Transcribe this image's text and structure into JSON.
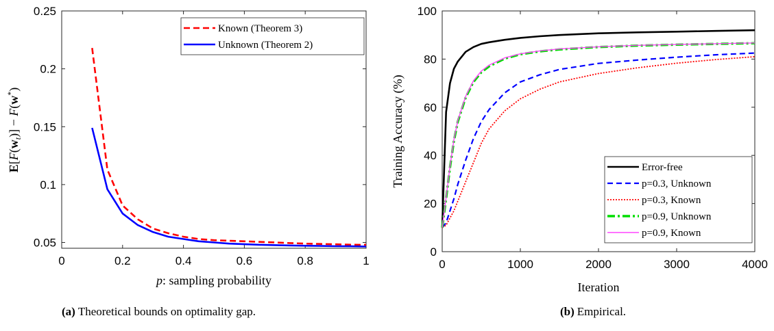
{
  "colors": {
    "known": "#ff0000",
    "unknown": "#0000ff",
    "error_free": "#000000",
    "p09_unknown": "#00dd00",
    "p09_known": "#ff44ff"
  },
  "captions": {
    "a_label": "(a)",
    "a_text": "Theoretical bounds on optimality gap.",
    "b_label": "(b)",
    "b_text": "Empirical."
  },
  "chart_data": [
    {
      "type": "line",
      "title": "",
      "xlabel": "p: sampling probability",
      "ylabel": "E[F(w_t)] − F(w*)",
      "xlim": [
        0,
        1
      ],
      "ylim": [
        0.045,
        0.25
      ],
      "xticks": [
        0,
        0.2,
        0.4,
        0.6,
        0.8,
        1
      ],
      "xtick_labels": [
        "0",
        "0.2",
        "0.4",
        "0.6",
        "0.8",
        "1"
      ],
      "yticks": [
        0.05,
        0.1,
        0.15,
        0.2,
        0.25
      ],
      "ytick_labels": [
        "0.05",
        "0.1",
        "0.15",
        "0.2",
        "0.25"
      ],
      "grid": false,
      "legend_position": "top-right",
      "x": [
        0.1,
        0.15,
        0.2,
        0.25,
        0.3,
        0.35,
        0.4,
        0.45,
        0.5,
        0.55,
        0.6,
        0.65,
        0.7,
        0.75,
        0.8,
        0.85,
        0.9,
        0.95,
        1.0
      ],
      "series": [
        {
          "name": "Known (Theorem 3)",
          "style": "dashed",
          "values": [
            0.218,
            0.113,
            0.082,
            0.07,
            0.062,
            0.058,
            0.055,
            0.053,
            0.052,
            0.0515,
            0.051,
            0.0505,
            0.05,
            0.0495,
            0.049,
            0.0487,
            0.0484,
            0.0481,
            0.048
          ]
        },
        {
          "name": "Unknown (Theorem 2)",
          "style": "solid",
          "values": [
            0.149,
            0.096,
            0.075,
            0.065,
            0.059,
            0.055,
            0.053,
            0.051,
            0.05,
            0.049,
            0.0485,
            0.048,
            0.0477,
            0.0474,
            0.0472,
            0.047,
            0.0468,
            0.0467,
            0.0465
          ]
        }
      ]
    },
    {
      "type": "line",
      "title": "",
      "xlabel": "Iteration",
      "ylabel": "Training Accuracy (%)",
      "xlim": [
        0,
        4000
      ],
      "ylim": [
        0,
        100
      ],
      "xticks": [
        0,
        1000,
        2000,
        3000,
        4000
      ],
      "xtick_labels": [
        "0",
        "1000",
        "2000",
        "3000",
        "4000"
      ],
      "yticks": [
        0,
        20,
        40,
        60,
        80,
        100
      ],
      "ytick_labels": [
        "0",
        "20",
        "40",
        "60",
        "80",
        "100"
      ],
      "grid": false,
      "legend_position": "bottom-right",
      "x": [
        0,
        50,
        100,
        150,
        200,
        300,
        400,
        500,
        600,
        800,
        1000,
        1250,
        1500,
        2000,
        2500,
        3000,
        3500,
        4000
      ],
      "series": [
        {
          "name": "Error-free",
          "style": "solid",
          "values": [
            10,
            58,
            70,
            76,
            79,
            83,
            85,
            86.3,
            87,
            88,
            88.8,
            89.5,
            90,
            90.7,
            91.1,
            91.4,
            91.7,
            92
          ]
        },
        {
          "name": "p=0.3, Unknown",
          "style": "dashed",
          "values": [
            10,
            12,
            17,
            22,
            28,
            38,
            47,
            54,
            59,
            66,
            70.5,
            73.5,
            75.7,
            78.2,
            79.6,
            80.8,
            81.8,
            82.5
          ]
        },
        {
          "name": "p=0.3, Known",
          "style": "dotted",
          "values": [
            10,
            11,
            14,
            17,
            21,
            29,
            37,
            45,
            51,
            58.5,
            63.5,
            67.5,
            70.5,
            74,
            76.4,
            78.3,
            79.8,
            81
          ]
        },
        {
          "name": "p=0.9, Unknown",
          "style": "dashdot",
          "values": [
            10,
            22,
            35,
            46,
            54,
            64,
            70.5,
            74.5,
            77,
            80.2,
            82,
            83.2,
            84,
            85,
            85.6,
            86,
            86.3,
            86.6
          ]
        },
        {
          "name": "p=0.9, Known",
          "style": "solid-thin",
          "values": [
            10,
            22.5,
            35.5,
            46.5,
            54.5,
            64.5,
            71,
            75,
            77.5,
            80.5,
            82.2,
            83.4,
            84.2,
            85.1,
            85.7,
            86.1,
            86.4,
            86.7
          ]
        }
      ]
    }
  ]
}
